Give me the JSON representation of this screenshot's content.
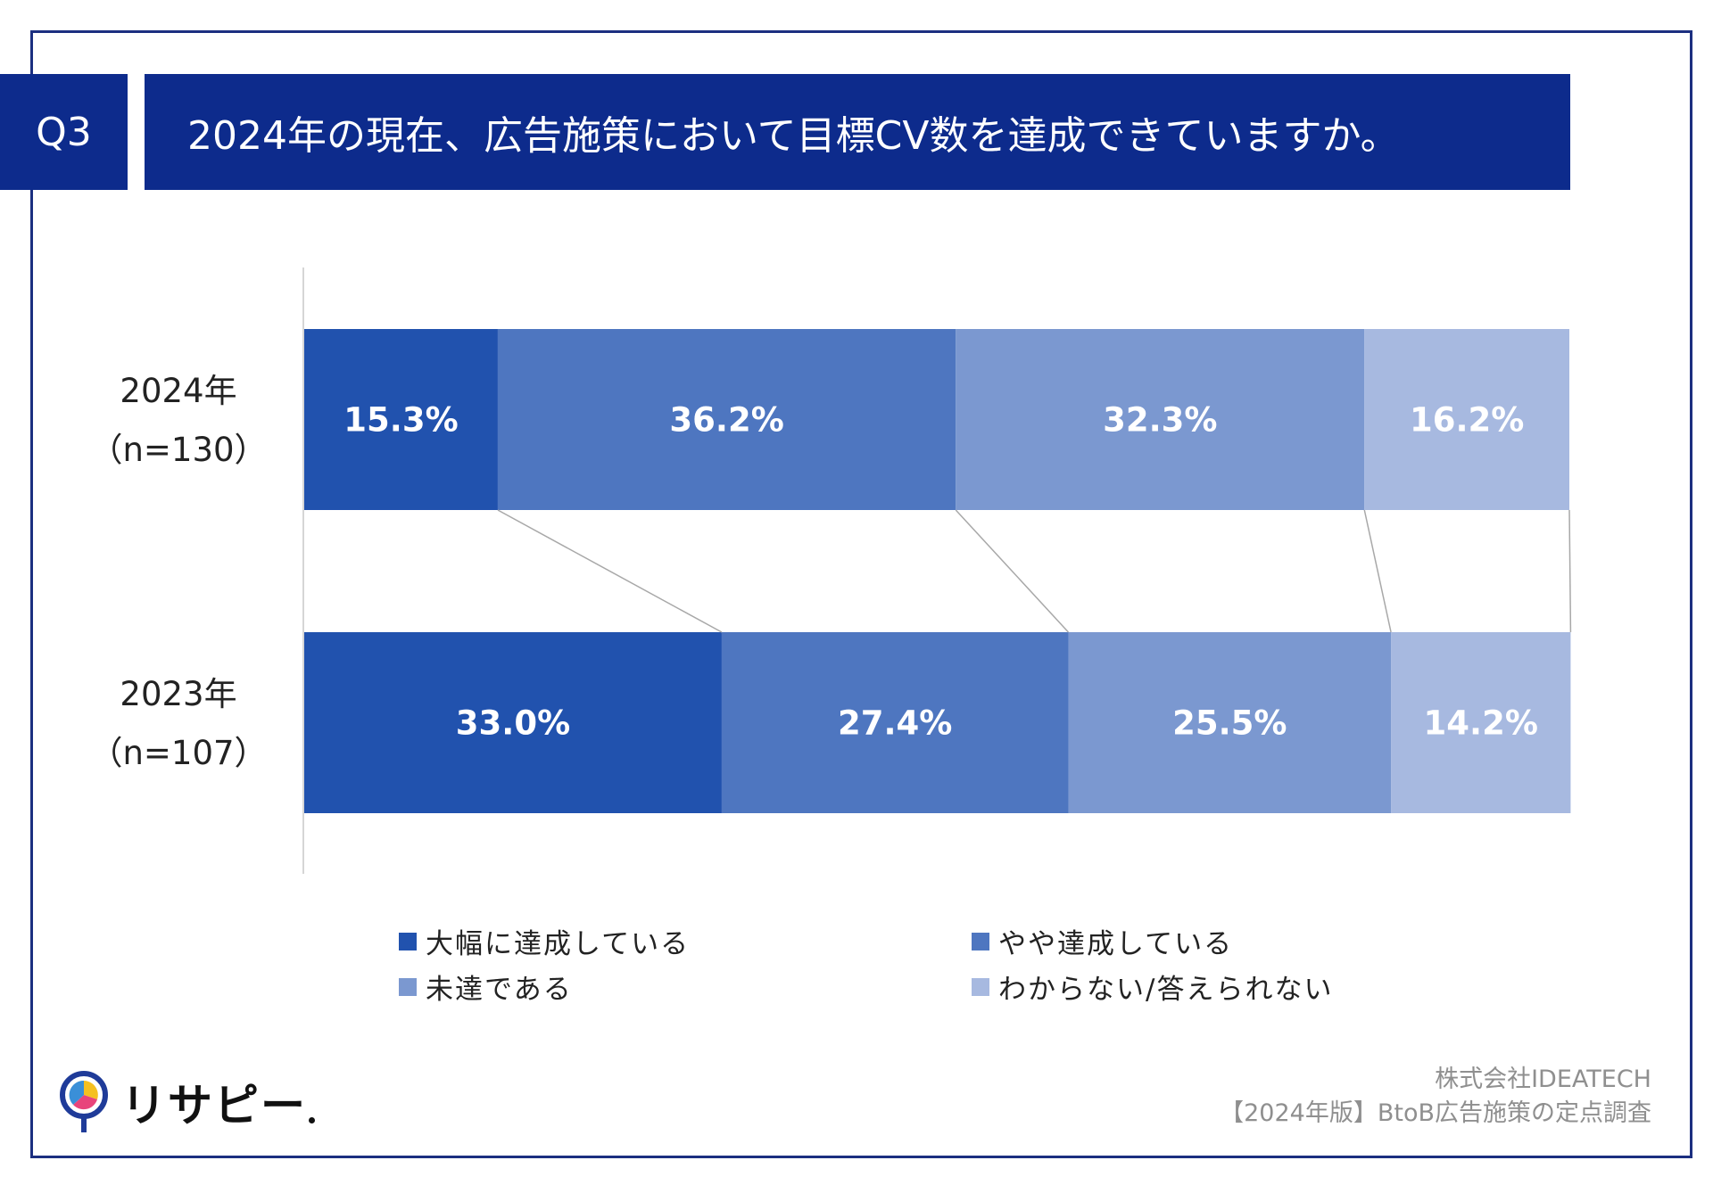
{
  "question": {
    "label": "Q3",
    "title": "2024年の現在、広告施策において目標CV数を達成できていますか。"
  },
  "chart_data": {
    "type": "bar",
    "orientation": "horizontal",
    "stacked": true,
    "unit": "%",
    "rows": [
      {
        "label": "2024年",
        "n": "（n=130）"
      },
      {
        "label": "2023年",
        "n": "（n=107）"
      }
    ],
    "series": [
      {
        "name": "大幅に達成している",
        "color": "#2152ae",
        "values": [
          15.3,
          33.0
        ],
        "labels": [
          "15.3%",
          "33.0%"
        ]
      },
      {
        "name": "やや達成している",
        "color": "#4e76c0",
        "values": [
          36.2,
          27.4
        ],
        "labels": [
          "36.2%",
          "27.4%"
        ]
      },
      {
        "name": "未達である",
        "color": "#7b98d0",
        "values": [
          32.3,
          25.5
        ],
        "labels": [
          "32.3%",
          "25.5%"
        ]
      },
      {
        "name": "わからない/答えられない",
        "color": "#a7b9e0",
        "values": [
          16.2,
          14.2
        ],
        "labels": [
          "16.2%",
          "14.2%"
        ]
      }
    ],
    "xlim": [
      0,
      100
    ],
    "connector_lines": true
  },
  "footer": {
    "logo_text": "リサピー",
    "company": "株式会社IDEATECH",
    "survey": "【2024年版】BtoB広告施策の定点調査"
  },
  "colors": {
    "header_bg": "#0d2b8c",
    "frame": "#1c2f80",
    "label_text": "#ffffff"
  },
  "icons": {
    "logo": "pin-pie-icon"
  }
}
